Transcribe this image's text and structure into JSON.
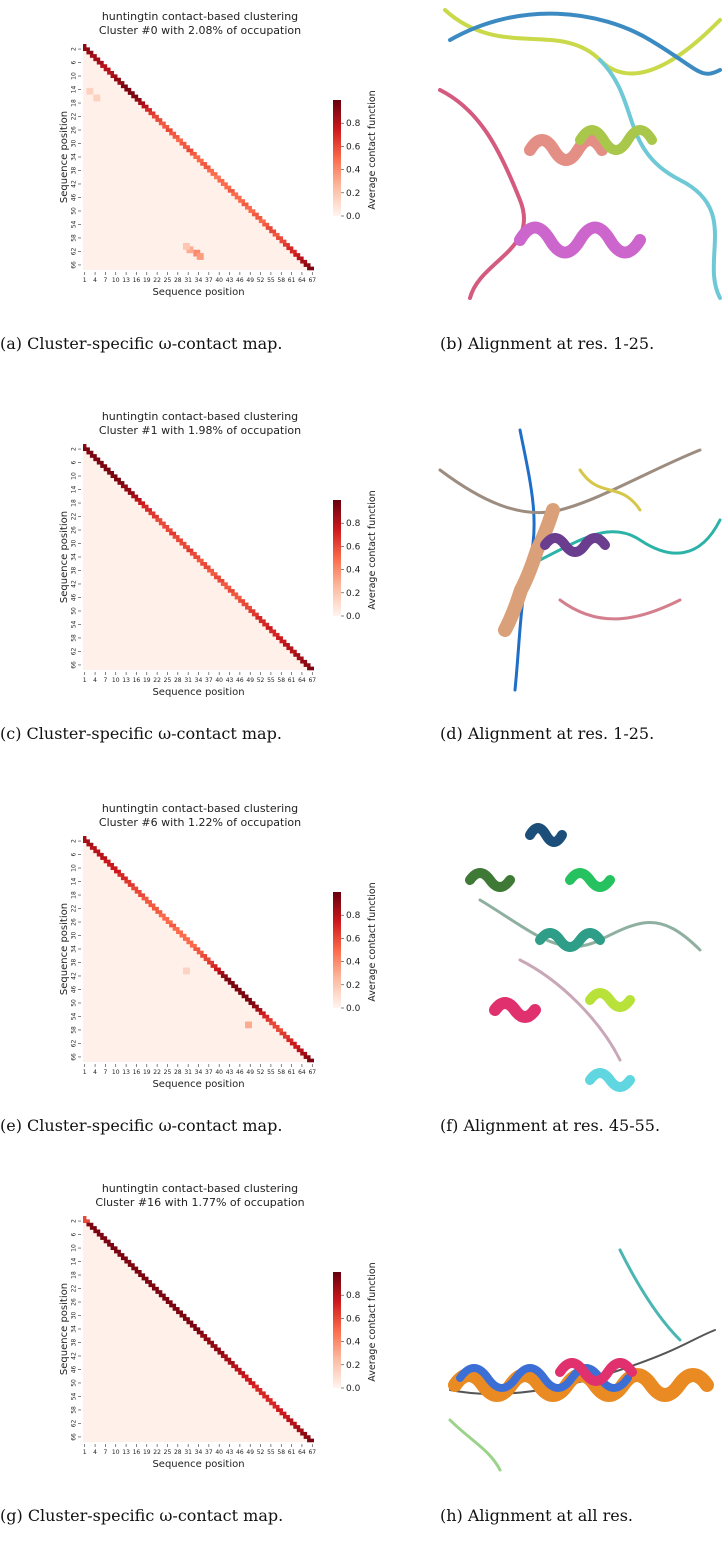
{
  "chart_data": [
    {
      "type": "heatmap",
      "title": "huntingtin contact-based clustering",
      "subtitle": "Cluster #0 with 2.08% of occupation",
      "xlabel": "Sequence position",
      "ylabel": "Sequence position",
      "colorbar_label": "Average contact function",
      "xlim": [
        1,
        67
      ],
      "ylim": [
        1,
        67
      ],
      "clim": [
        0,
        1
      ],
      "xticks": [
        1,
        4,
        7,
        10,
        13,
        16,
        19,
        22,
        25,
        28,
        31,
        34,
        37,
        40,
        43,
        46,
        49,
        52,
        55,
        58,
        61,
        64,
        67
      ],
      "yticks": [
        2,
        6,
        10,
        14,
        18,
        22,
        26,
        30,
        34,
        38,
        42,
        46,
        50,
        54,
        58,
        62,
        66
      ],
      "cticks": [
        {
          "value": 0,
          "label": "0.0"
        },
        0.2,
        0.4,
        0.6,
        0.8
      ],
      "diagonal": [
        0.9,
        0.9,
        0.9,
        0.85,
        0.85,
        0.85,
        0.8,
        0.8,
        0.8,
        0.85,
        0.9,
        0.9,
        0.95,
        0.95,
        0.95,
        0.95,
        0.9,
        0.85,
        0.8,
        0.7,
        0.65,
        0.6,
        0.6,
        0.55,
        0.55,
        0.6,
        0.55,
        0.55,
        0.5,
        0.55,
        0.55,
        0.6,
        0.55,
        0.5,
        0.5,
        0.55,
        0.55,
        0.5,
        0.5,
        0.45,
        0.5,
        0.5,
        0.5,
        0.55,
        0.5,
        0.5,
        0.5,
        0.55,
        0.5,
        0.5,
        0.55,
        0.55,
        0.5,
        0.55,
        0.6,
        0.6,
        0.55,
        0.6,
        0.6,
        0.65,
        0.7,
        0.7,
        0.75,
        0.8,
        0.85,
        0.9,
        0.95
      ],
      "patches": [
        {
          "row": 61,
          "col": 31,
          "value": 0.3
        },
        {
          "row": 62,
          "col": 33,
          "value": 0.4
        },
        {
          "row": 63,
          "col": 34,
          "value": 0.35
        },
        {
          "row": 60,
          "col": 30,
          "value": 0.2
        },
        {
          "row": 14,
          "col": 2,
          "value": 0.15
        },
        {
          "row": 16,
          "col": 4,
          "value": 0.15
        }
      ],
      "caption": "(a) Cluster-specific ω-contact map."
    },
    {
      "type": "heatmap",
      "title": "huntingtin contact-based clustering",
      "subtitle": "Cluster #1 with 1.98% of occupation",
      "xlabel": "Sequence position",
      "ylabel": "Sequence position",
      "colorbar_label": "Average contact function",
      "xlim": [
        1,
        67
      ],
      "ylim": [
        1,
        67
      ],
      "clim": [
        0,
        1
      ],
      "xticks": [
        1,
        4,
        7,
        10,
        13,
        16,
        19,
        22,
        25,
        28,
        31,
        34,
        37,
        40,
        43,
        46,
        49,
        52,
        55,
        58,
        61,
        64,
        67
      ],
      "yticks": [
        2,
        6,
        10,
        14,
        18,
        22,
        26,
        30,
        34,
        38,
        42,
        46,
        50,
        54,
        58,
        62,
        66
      ],
      "cticks": [
        {
          "value": 0,
          "label": "0.0"
        },
        0.2,
        0.4,
        0.6,
        0.8
      ],
      "diagonal": [
        0.9,
        0.95,
        0.95,
        0.95,
        0.95,
        0.95,
        0.95,
        0.95,
        0.95,
        0.95,
        0.95,
        0.95,
        0.9,
        0.9,
        0.9,
        0.85,
        0.8,
        0.75,
        0.7,
        0.7,
        0.65,
        0.65,
        0.6,
        0.6,
        0.6,
        0.6,
        0.65,
        0.6,
        0.6,
        0.6,
        0.6,
        0.65,
        0.6,
        0.6,
        0.55,
        0.6,
        0.6,
        0.55,
        0.55,
        0.6,
        0.6,
        0.55,
        0.55,
        0.6,
        0.55,
        0.55,
        0.6,
        0.6,
        0.6,
        0.65,
        0.65,
        0.7,
        0.7,
        0.7,
        0.75,
        0.7,
        0.7,
        0.75,
        0.75,
        0.8,
        0.8,
        0.8,
        0.85,
        0.85,
        0.9,
        0.9,
        0.95
      ],
      "patches": [],
      "caption": "(c) Cluster-specific ω-contact map."
    },
    {
      "type": "heatmap",
      "title": "huntingtin contact-based clustering",
      "subtitle": "Cluster #6 with 1.22% of occupation",
      "xlabel": "Sequence position",
      "ylabel": "Sequence position",
      "colorbar_label": "Average contact function",
      "xlim": [
        1,
        67
      ],
      "ylim": [
        1,
        67
      ],
      "clim": [
        0,
        1
      ],
      "xticks": [
        1,
        4,
        7,
        10,
        13,
        16,
        19,
        22,
        25,
        28,
        31,
        34,
        37,
        40,
        43,
        46,
        49,
        52,
        55,
        58,
        61,
        64,
        67
      ],
      "yticks": [
        2,
        6,
        10,
        14,
        18,
        22,
        26,
        30,
        34,
        38,
        42,
        46,
        50,
        54,
        58,
        62,
        66
      ],
      "cticks": [
        {
          "value": 0,
          "label": "0.0"
        },
        0.2,
        0.4,
        0.6,
        0.8
      ],
      "diagonal": [
        0.85,
        0.85,
        0.85,
        0.8,
        0.8,
        0.8,
        0.8,
        0.75,
        0.75,
        0.75,
        0.75,
        0.7,
        0.7,
        0.65,
        0.65,
        0.6,
        0.6,
        0.6,
        0.55,
        0.55,
        0.55,
        0.55,
        0.55,
        0.5,
        0.5,
        0.5,
        0.55,
        0.5,
        0.5,
        0.5,
        0.5,
        0.5,
        0.5,
        0.55,
        0.55,
        0.6,
        0.6,
        0.65,
        0.7,
        0.75,
        0.85,
        0.9,
        0.95,
        0.95,
        0.95,
        0.95,
        0.95,
        0.95,
        0.95,
        0.95,
        0.9,
        0.85,
        0.75,
        0.7,
        0.65,
        0.6,
        0.6,
        0.6,
        0.65,
        0.65,
        0.7,
        0.75,
        0.75,
        0.8,
        0.85,
        0.9,
        0.95
      ],
      "patches": [
        {
          "row": 56,
          "col": 48,
          "value": 0.3
        },
        {
          "row": 40,
          "col": 30,
          "value": 0.15
        }
      ],
      "caption": "(e) Cluster-specific ω-contact map."
    },
    {
      "type": "heatmap",
      "title": "huntingtin contact-based clustering",
      "subtitle": "Cluster #16 with 1.77% of occupation",
      "xlabel": "Sequence position",
      "ylabel": "Sequence position",
      "colorbar_label": "Average contact function",
      "xlim": [
        1,
        67
      ],
      "ylim": [
        1,
        67
      ],
      "clim": [
        0,
        1
      ],
      "xticks": [
        1,
        4,
        7,
        10,
        13,
        16,
        19,
        22,
        25,
        28,
        31,
        34,
        37,
        40,
        43,
        46,
        49,
        52,
        55,
        58,
        61,
        64,
        67
      ],
      "yticks": [
        2,
        6,
        10,
        14,
        18,
        22,
        26,
        30,
        34,
        38,
        42,
        46,
        50,
        54,
        58,
        62,
        66
      ],
      "cticks": [
        {
          "value": 0,
          "label": "0.0"
        },
        0.2,
        0.4,
        0.6,
        0.8
      ],
      "diagonal": [
        0.6,
        0.6,
        0.95,
        0.95,
        0.95,
        0.95,
        0.95,
        0.95,
        0.95,
        0.95,
        0.95,
        0.95,
        0.95,
        0.95,
        0.95,
        0.95,
        0.95,
        0.95,
        0.95,
        0.95,
        0.95,
        0.95,
        0.95,
        0.95,
        0.95,
        0.95,
        0.95,
        0.95,
        0.95,
        0.95,
        0.95,
        0.95,
        0.95,
        0.95,
        0.95,
        0.9,
        0.9,
        0.9,
        0.9,
        0.9,
        0.9,
        0.85,
        0.85,
        0.85,
        0.8,
        0.8,
        0.8,
        0.75,
        0.75,
        0.75,
        0.7,
        0.7,
        0.7,
        0.7,
        0.7,
        0.7,
        0.7,
        0.75,
        0.75,
        0.75,
        0.8,
        0.8,
        0.85,
        0.85,
        0.9,
        0.9,
        0.95
      ],
      "patches": [],
      "caption": "(g) Cluster-specific ω-contact map."
    }
  ],
  "images": [
    {
      "caption": "(b) Alignment at res. 1-25."
    },
    {
      "caption": "(d) Alignment at res. 1-25."
    },
    {
      "caption": "(f) Alignment at res. 45-55."
    },
    {
      "caption": "(h) Alignment at all res."
    }
  ]
}
